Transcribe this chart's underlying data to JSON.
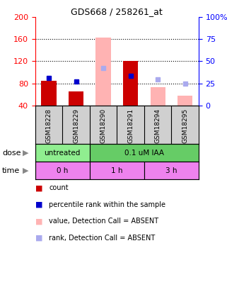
{
  "title": "GDS668 / 258261_at",
  "samples": [
    "GSM18228",
    "GSM18229",
    "GSM18290",
    "GSM18291",
    "GSM18294",
    "GSM18295"
  ],
  "bar_values": [
    85,
    65,
    null,
    120,
    null,
    null
  ],
  "bar_absent_values": [
    null,
    null,
    163,
    null,
    73,
    58
  ],
  "rank_values": [
    90,
    83,
    null,
    93,
    null,
    null
  ],
  "rank_absent_values": [
    null,
    null,
    108,
    null,
    87,
    null
  ],
  "rank_absent2_values": [
    null,
    null,
    null,
    null,
    null,
    80
  ],
  "ylim": [
    40,
    200
  ],
  "yticks": [
    40,
    80,
    120,
    160,
    200
  ],
  "y2lim": [
    0,
    100
  ],
  "y2ticks": [
    0,
    25,
    50,
    75,
    100
  ],
  "y2labels": [
    "0",
    "25",
    "50",
    "75",
    "100%"
  ],
  "bar_color": "#cc0000",
  "bar_absent_color": "#ffb3b3",
  "rank_color": "#0000cc",
  "rank_absent_color": "#aaaaee",
  "dose_color_untreated": "#90ee90",
  "dose_color_treated": "#66cc66",
  "time_color": "#ee82ee",
  "grid_color": "#888888",
  "bar_width": 0.55,
  "legend_items": [
    [
      "#cc0000",
      "count"
    ],
    [
      "#0000cc",
      "percentile rank within the sample"
    ],
    [
      "#ffb3b3",
      "value, Detection Call = ABSENT"
    ],
    [
      "#aaaaee",
      "rank, Detection Call = ABSENT"
    ]
  ]
}
